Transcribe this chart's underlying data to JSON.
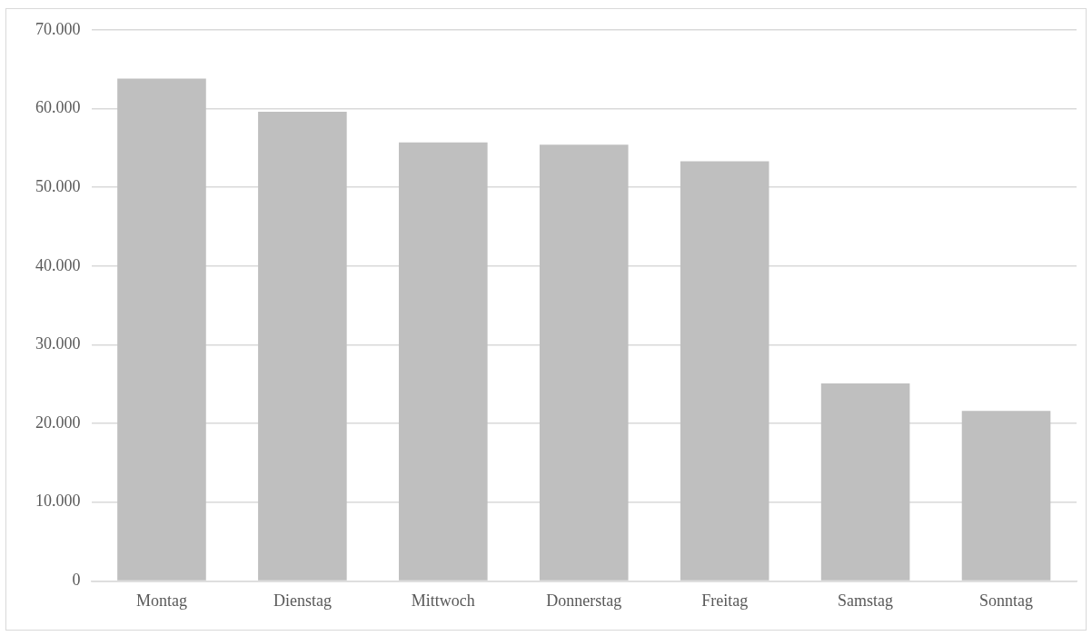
{
  "chart_data": {
    "type": "bar",
    "categories": [
      "Montag",
      "Dienstag",
      "Mittwoch",
      "Donnerstag",
      "Freitag",
      "Samstag",
      "Sonntag"
    ],
    "values": [
      63800,
      59600,
      55700,
      55400,
      53300,
      25100,
      21600
    ],
    "color": "#bfbfbf",
    "ylim": [
      0,
      70000
    ],
    "yticks": [
      {
        "value": 0,
        "label": "0"
      },
      {
        "value": 10000,
        "label": "10.000"
      },
      {
        "value": 20000,
        "label": "20.000"
      },
      {
        "value": 30000,
        "label": "30.000"
      },
      {
        "value": 40000,
        "label": "40.000"
      },
      {
        "value": 50000,
        "label": "50.000"
      },
      {
        "value": 60000,
        "label": "60.000"
      },
      {
        "value": 70000,
        "label": "70.000"
      }
    ],
    "grid": "y"
  }
}
